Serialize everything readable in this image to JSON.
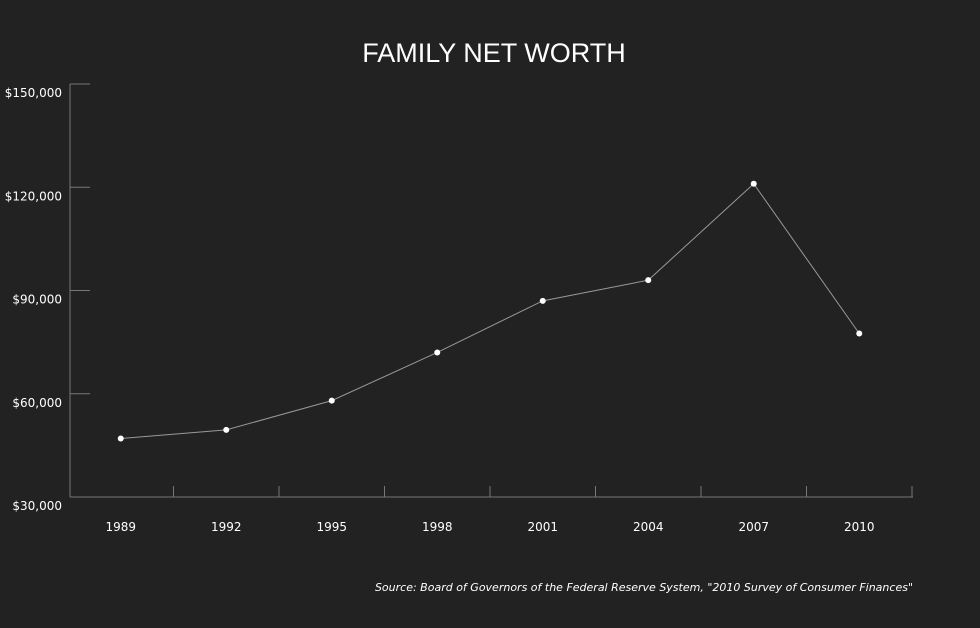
{
  "chart_data": {
    "type": "line",
    "title": "FAMILY NET WORTH",
    "categories": [
      "1989",
      "1992",
      "1995",
      "1998",
      "2001",
      "2004",
      "2007",
      "2010"
    ],
    "series": [
      {
        "name": "Family net worth",
        "color": "#ffffff",
        "values": [
          47000,
          49500,
          58000,
          72000,
          87000,
          93000,
          121000,
          77500
        ]
      }
    ],
    "ylim": [
      30000,
      150000
    ],
    "yticks": [
      {
        "value": 30000,
        "label": "$30,000"
      },
      {
        "value": 60000,
        "label": "$60,000"
      },
      {
        "value": 90000,
        "label": "$90,000"
      },
      {
        "value": 120000,
        "label": "$120,000"
      },
      {
        "value": 150000,
        "label": "$150,000"
      }
    ],
    "source": "Source: Board of Governors of the Federal Reserve System, \"2010 Survey of Consumer Finances\""
  }
}
